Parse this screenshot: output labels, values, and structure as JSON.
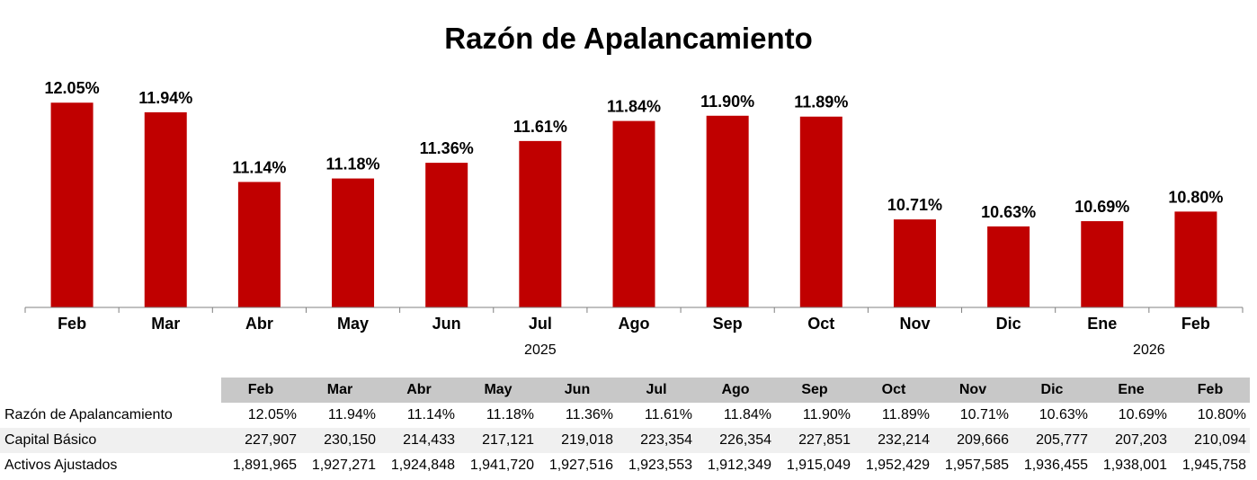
{
  "chart_data": {
    "type": "bar",
    "title": "Razón de Apalancamiento",
    "categories": [
      "Feb",
      "Mar",
      "Abr",
      "May",
      "Jun",
      "Jul",
      "Ago",
      "Sep",
      "Oct",
      "Nov",
      "Dic",
      "Ene",
      "Feb"
    ],
    "years": [
      {
        "label": "2025",
        "span": [
          0,
          10
        ]
      },
      {
        "label": "2026",
        "span": [
          11,
          12
        ]
      }
    ],
    "values": [
      12.05,
      11.94,
      11.14,
      11.18,
      11.36,
      11.61,
      11.84,
      11.9,
      11.89,
      10.71,
      10.63,
      10.69,
      10.8
    ],
    "value_labels": [
      "12.05%",
      "11.94%",
      "11.14%",
      "11.18%",
      "11.36%",
      "11.61%",
      "11.84%",
      "11.90%",
      "11.89%",
      "10.71%",
      "10.63%",
      "10.69%",
      "10.80%"
    ],
    "ylim": [
      9.7,
      12.3
    ],
    "bar_color": "#c00000",
    "grid": false,
    "legend": "none"
  },
  "table": {
    "headers": [
      "Feb",
      "Mar",
      "Abr",
      "May",
      "Jun",
      "Jul",
      "Ago",
      "Sep",
      "Oct",
      "Nov",
      "Dic",
      "Ene",
      "Feb"
    ],
    "rows": [
      {
        "label": "Razón de Apalancamiento",
        "values": [
          "12.05%",
          "11.94%",
          "11.14%",
          "11.18%",
          "11.36%",
          "11.61%",
          "11.84%",
          "11.90%",
          "11.89%",
          "10.71%",
          "10.63%",
          "10.69%",
          "10.80%"
        ]
      },
      {
        "label": "Capital Básico",
        "values": [
          "227,907",
          "230,150",
          "214,433",
          "217,121",
          "219,018",
          "223,354",
          "226,354",
          "227,851",
          "232,214",
          "209,666",
          "205,777",
          "207,203",
          "210,094"
        ]
      },
      {
        "label": "Activos Ajustados",
        "values": [
          "1,891,965",
          "1,927,271",
          "1,924,848",
          "1,941,720",
          "1,927,516",
          "1,923,553",
          "1,912,349",
          "1,915,049",
          "1,952,429",
          "1,957,585",
          "1,936,455",
          "1,938,001",
          "1,945,758"
        ]
      }
    ]
  }
}
